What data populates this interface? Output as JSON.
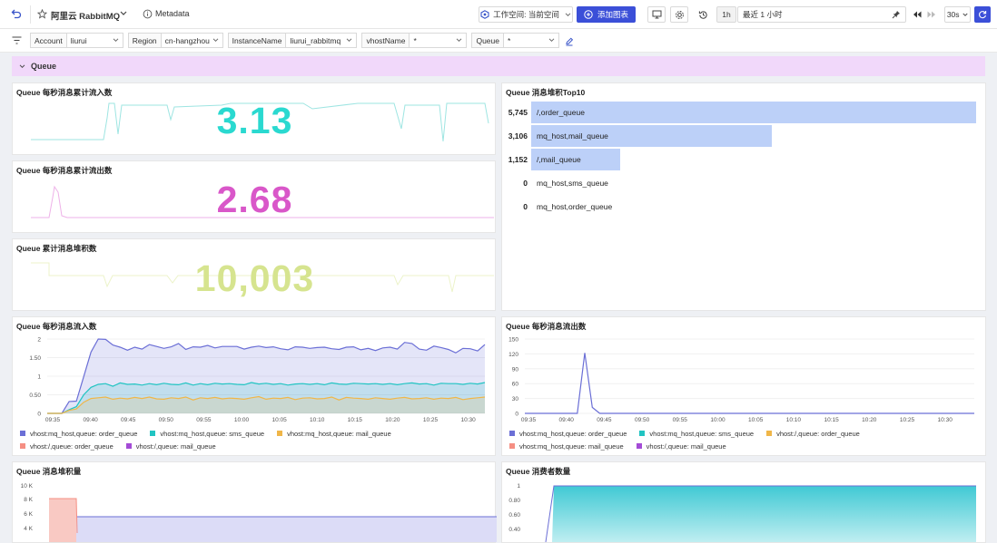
{
  "header": {
    "title": "阿里云 RabbitMQ",
    "metadata_label": "Metadata",
    "workspace_label": "工作空间: 当前空间",
    "add_chart_label": "添加图表",
    "time_short": "1h",
    "time_range": "最近 1 小时",
    "refresh_interval": "30s"
  },
  "filters": [
    {
      "label": "Account",
      "value": "liurui"
    },
    {
      "label": "Region",
      "value": "cn-hangzhou"
    },
    {
      "label": "InstanceName",
      "value": "liurui_rabbitmq"
    },
    {
      "label": "vhostName",
      "value": "*"
    },
    {
      "label": "Queue",
      "value": "*"
    }
  ],
  "row_title": "Queue",
  "stats": [
    {
      "title": "Queue 每秒消息累计流入数",
      "value": "3.13",
      "color": "#2ad9d0"
    },
    {
      "title": "Queue 每秒消息累计流出数",
      "value": "2.68",
      "color": "#d957c9"
    },
    {
      "title": "Queue 累计消息堆积数",
      "value": "10,003",
      "color": "#d6e48f"
    }
  ],
  "top10": {
    "title": "Queue 消息堆积Top10",
    "items": [
      {
        "value": 5745,
        "label": "5,745",
        "name": "/,order_queue"
      },
      {
        "value": 3106,
        "label": "3,106",
        "name": "mq_host,mail_queue"
      },
      {
        "value": 1152,
        "label": "1,152",
        "name": "/,mail_queue"
      },
      {
        "value": 0,
        "label": "0",
        "name": "mq_host,sms_queue"
      },
      {
        "value": 0,
        "label": "0",
        "name": "mq_host,order_queue"
      }
    ]
  },
  "x_ticks": [
    "09:35",
    "09:40",
    "09:45",
    "09:50",
    "09:55",
    "10:00",
    "10:05",
    "10:10",
    "10:15",
    "10:20",
    "10:25",
    "10:30"
  ],
  "chart_data": [
    {
      "type": "area",
      "title": "Queue 每秒消息流入数",
      "ylim": [
        0,
        2
      ],
      "yticks": [
        "0",
        "0.50",
        "1",
        "1.50",
        "2"
      ],
      "series": [
        {
          "name": "vhost:mq_host,queue: order_queue",
          "color": "#6b6fd6",
          "values": [
            0,
            0,
            0,
            0.32,
            0.33,
            0.99,
            1.65,
            2.0,
            1.99,
            1.84,
            1.78,
            1.7,
            1.78,
            1.73,
            1.85,
            1.8,
            1.75,
            1.79,
            1.88,
            1.72,
            1.79,
            1.78,
            1.83,
            1.76,
            1.8,
            1.8,
            1.8,
            1.73,
            1.78,
            1.81,
            1.77,
            1.79,
            1.74,
            1.71,
            1.79,
            1.78,
            1.75,
            1.77,
            1.78,
            1.74,
            1.72,
            1.78,
            1.79,
            1.71,
            1.75,
            1.69,
            1.76,
            1.78,
            1.73,
            1.91,
            1.88,
            1.73,
            1.7,
            1.81,
            1.77,
            1.72,
            1.63,
            1.75,
            1.74,
            1.68,
            1.85
          ]
        },
        {
          "name": "vhost:mq_host,queue: sms_queue",
          "color": "#21c4c2",
          "values": [
            0,
            0,
            0,
            0.1,
            0.18,
            0.5,
            0.7,
            0.78,
            0.8,
            0.73,
            0.82,
            0.78,
            0.79,
            0.76,
            0.8,
            0.77,
            0.81,
            0.78,
            0.77,
            0.82,
            0.76,
            0.8,
            0.77,
            0.81,
            0.79,
            0.8,
            0.78,
            0.77,
            0.83,
            0.79,
            0.81,
            0.78,
            0.8,
            0.76,
            0.79,
            0.8,
            0.78,
            0.8,
            0.77,
            0.82,
            0.79,
            0.78,
            0.81,
            0.8,
            0.79,
            0.8,
            0.78,
            0.8,
            0.77,
            0.8,
            0.82,
            0.79,
            0.8,
            0.76,
            0.81,
            0.8,
            0.8,
            0.78,
            0.81,
            0.79,
            0.83
          ]
        },
        {
          "name": "vhost:mq_host,queue: mail_queue",
          "color": "#f0b648",
          "values": [
            0,
            0,
            0,
            0.08,
            0.12,
            0.3,
            0.4,
            0.42,
            0.44,
            0.38,
            0.41,
            0.39,
            0.43,
            0.4,
            0.44,
            0.39,
            0.38,
            0.42,
            0.4,
            0.44,
            0.36,
            0.42,
            0.4,
            0.43,
            0.39,
            0.41,
            0.4,
            0.38,
            0.42,
            0.45,
            0.38,
            0.41,
            0.4,
            0.43,
            0.37,
            0.41,
            0.42,
            0.39,
            0.4,
            0.44,
            0.36,
            0.43,
            0.41,
            0.4,
            0.38,
            0.42,
            0.4,
            0.38,
            0.41,
            0.43,
            0.39,
            0.4,
            0.42,
            0.38,
            0.41,
            0.4,
            0.43,
            0.37,
            0.4,
            0.42,
            0.44
          ]
        },
        {
          "name": "vhost:/,queue: order_queue",
          "color": "#f58f83",
          "values": []
        },
        {
          "name": "vhost:/,queue: mail_queue",
          "color": "#a44bd6",
          "values": []
        }
      ]
    },
    {
      "type": "line",
      "title": "Queue 每秒消息流出数",
      "ylim": [
        0,
        150
      ],
      "yticks": [
        "0",
        "30",
        "60",
        "90",
        "120",
        "150"
      ],
      "series": [
        {
          "name": "vhost:mq_host,queue: order_queue",
          "color": "#6b6fd6",
          "values": [
            0,
            0,
            0,
            0,
            0,
            0,
            0,
            0,
            122,
            12,
            0,
            0,
            0,
            0,
            0,
            0,
            0,
            0,
            0,
            0,
            0,
            0,
            0,
            0,
            0,
            0,
            0,
            0,
            0,
            0,
            0,
            0,
            0,
            0,
            0,
            0,
            0,
            0,
            0,
            0,
            0,
            0,
            0,
            0,
            0,
            0,
            0,
            0,
            0,
            0,
            0,
            0,
            0,
            0,
            0,
            0,
            0,
            0,
            0,
            0,
            0
          ]
        },
        {
          "name": "vhost:mq_host,queue: sms_queue",
          "color": "#21c4c2",
          "values": []
        },
        {
          "name": "vhost:/,queue: order_queue",
          "color": "#f0b648",
          "values": []
        },
        {
          "name": "vhost:mq_host,queue: mail_queue",
          "color": "#f58f83",
          "values": []
        },
        {
          "name": "vhost:/,queue: mail_queue",
          "color": "#a44bd6",
          "values": []
        }
      ]
    },
    {
      "type": "area",
      "title": "Queue 消息堆积量",
      "yticks": [
        "4 K",
        "6 K",
        "8 K",
        "10 K"
      ],
      "ylim": [
        3500,
        10000
      ]
    },
    {
      "type": "area",
      "title": "Queue 消费者数量",
      "yticks": [
        "0.40",
        "0.60",
        "0.80",
        "1"
      ],
      "ylim": [
        0.35,
        1
      ]
    }
  ]
}
